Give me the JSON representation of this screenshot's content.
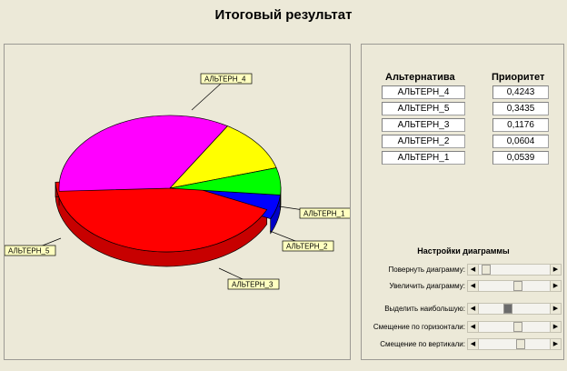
{
  "window": {
    "title": "Итоговый результат"
  },
  "chart_data": {
    "type": "pie",
    "title": "",
    "slices": [
      {
        "label": "АЛЬТЕРН_4",
        "value": 0.4243,
        "color": "#ff0000"
      },
      {
        "label": "АЛЬТЕРН_5",
        "value": 0.3435,
        "color": "#ff00ff"
      },
      {
        "label": "АЛЬТЕРН_3",
        "value": 0.1176,
        "color": "#ffff00"
      },
      {
        "label": "АЛЬТЕРН_2",
        "value": 0.0604,
        "color": "#00ff00"
      },
      {
        "label": "АЛЬТЕРН_1",
        "value": 0.0539,
        "color": "#0000ff"
      }
    ],
    "style": "3d",
    "callout_color": "#ffffc0"
  },
  "table": {
    "headers": {
      "alternative": "Альтернатива",
      "priority": "Приоритет"
    },
    "rows": [
      {
        "alternative": "АЛЬТЕРН_4",
        "priority": "0,4243"
      },
      {
        "alternative": "АЛЬТЕРН_5",
        "priority": "0,3435"
      },
      {
        "alternative": "АЛЬТЕРН_3",
        "priority": "0,1176"
      },
      {
        "alternative": "АЛЬТЕРН_2",
        "priority": "0,0604"
      },
      {
        "alternative": "АЛЬТЕРН_1",
        "priority": "0,0539"
      }
    ]
  },
  "settings": {
    "title": "Настройки диаграммы",
    "sliders": [
      {
        "label": "Повернуть диаграмму:",
        "value": 0.05,
        "dark": false
      },
      {
        "label": "Увеличить диаграмму:",
        "value": 0.55,
        "dark": false
      },
      {
        "label": "Выделить наибольшую:",
        "value": 0.4,
        "dark": true
      },
      {
        "label": "Смещение по горизонтали:",
        "value": 0.55,
        "dark": false
      },
      {
        "label": "Смещение по вертикали:",
        "value": 0.6,
        "dark": false
      }
    ]
  }
}
